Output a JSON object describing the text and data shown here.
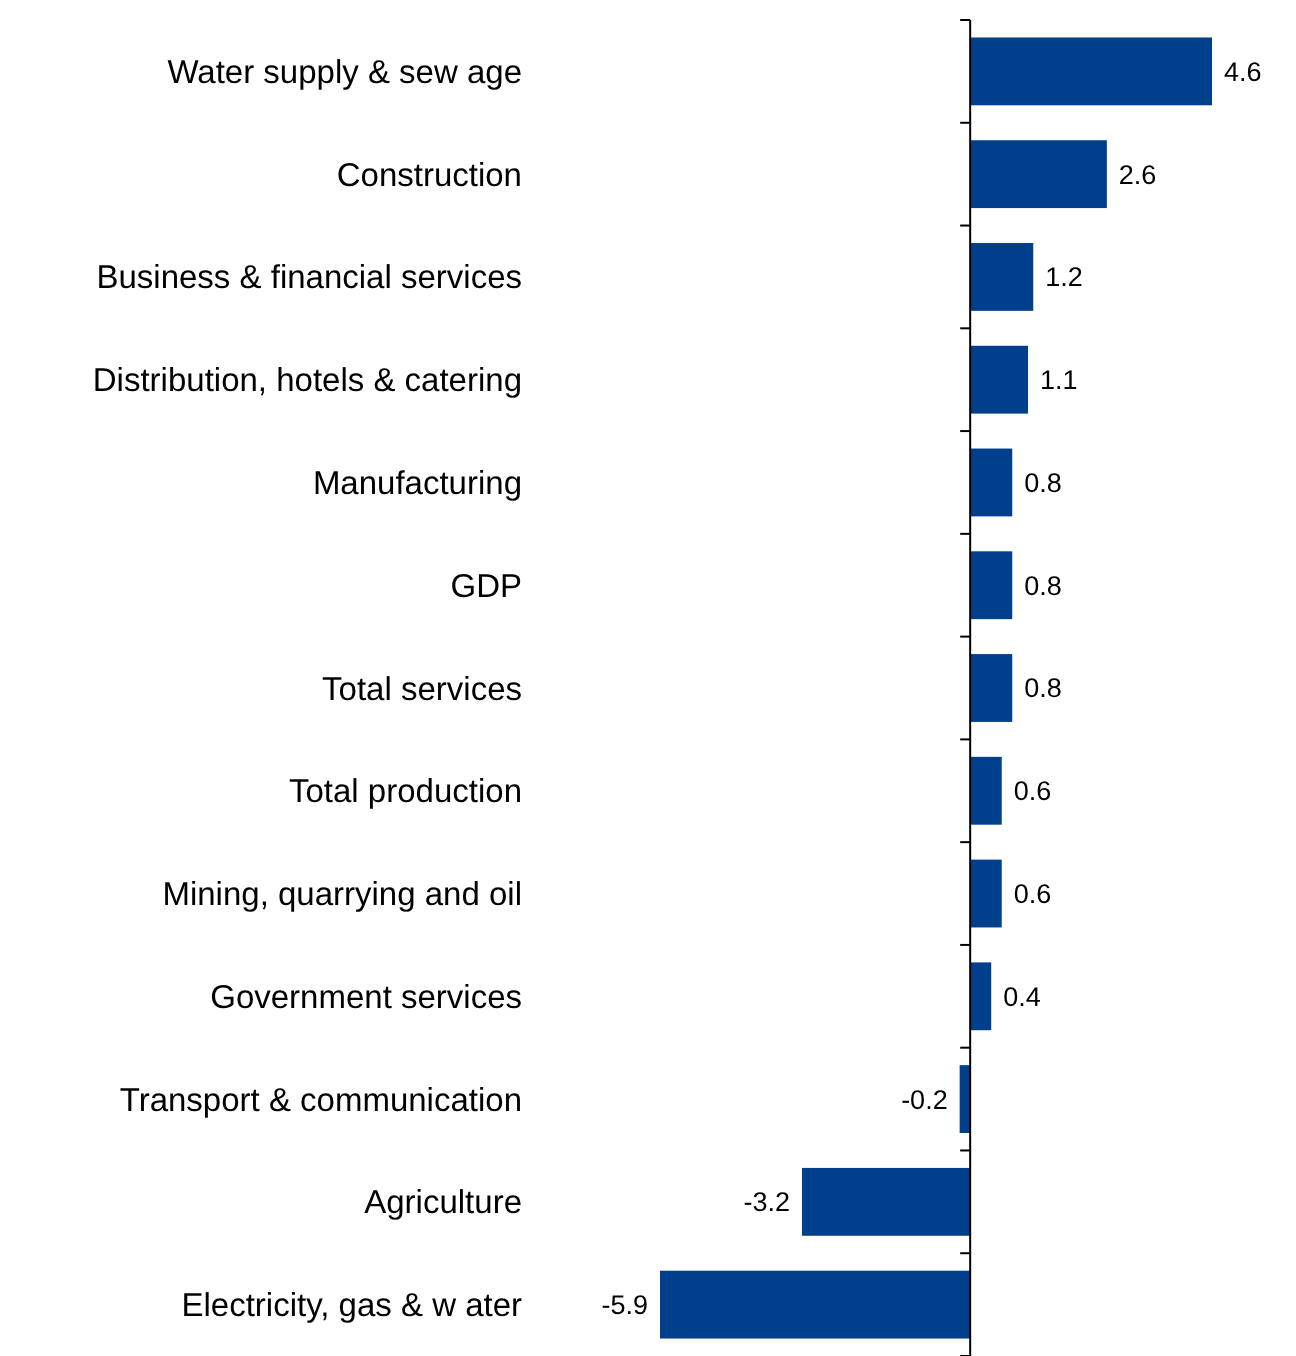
{
  "chart_data": {
    "type": "bar",
    "orientation": "horizontal",
    "categories": [
      "Water supply & sew age",
      "Construction",
      "Business & financial services",
      "Distribution, hotels & catering",
      "Manufacturing",
      "GDP",
      "Total services",
      "Total production",
      "Mining, quarrying and oil",
      "Government services",
      "Transport & communication",
      "Agriculture",
      "Electricity, gas & w ater"
    ],
    "values": [
      4.6,
      2.6,
      1.2,
      1.1,
      0.8,
      0.8,
      0.8,
      0.6,
      0.6,
      0.4,
      -0.2,
      -3.2,
      -5.9
    ],
    "color": "#003f8c",
    "data_labels": true
  }
}
